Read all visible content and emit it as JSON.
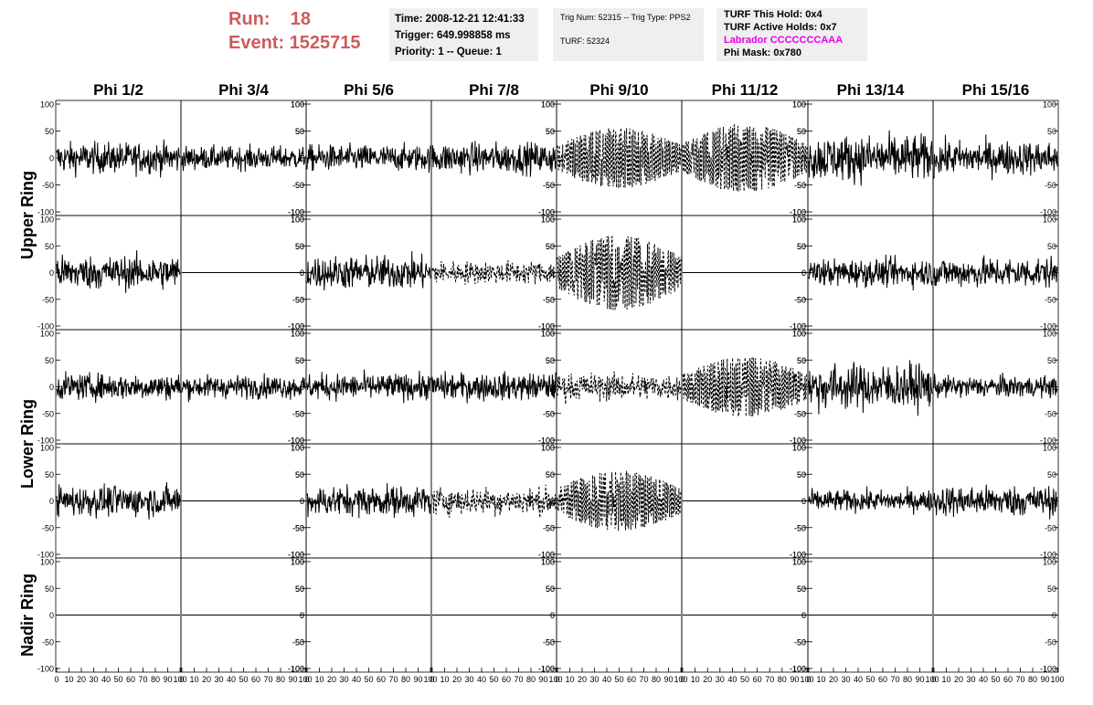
{
  "header": {
    "run_label": "Run:",
    "run_value": "18",
    "event_label": "Event:",
    "event_value": "1525715",
    "time": "Time: 2008-12-21 12:41:33",
    "trigger": "Trigger: 649.998858 ms",
    "priority": "Priority: 1 -- Queue: 1",
    "trig_num": "Trig Num: 52315 -- Trig Type: PPS2",
    "turf": "TURF: 52324",
    "turf_this_hold": "TURF This Hold: 0x4",
    "turf_active_holds": "TURF Active Holds: 0x7",
    "labrador": "Labrador CCCCCCCAAA",
    "phi_mask": "Phi Mask: 0x780"
  },
  "colors": {
    "run_text": "#cd5c5c",
    "labrador_text": "#e800e8",
    "info_bg": "#efefef",
    "trace": "#000000"
  },
  "chart_data": {
    "type": "line",
    "columns": [
      "Phi 1/2",
      "Phi 3/4",
      "Phi 5/6",
      "Phi 7/8",
      "Phi 9/10",
      "Phi 11/12",
      "Phi 13/14",
      "Phi 15/16"
    ],
    "ring_labels": [
      "Upper Ring",
      "Lower Ring",
      "Nadir Ring"
    ],
    "ring_rows": [
      [
        0,
        1
      ],
      [
        2,
        3
      ],
      [
        4
      ]
    ],
    "xlim": [
      0,
      100
    ],
    "ylim": [
      -100,
      100
    ],
    "x_ticks": [
      "0",
      "10",
      "20",
      "30",
      "40",
      "50",
      "60",
      "70",
      "80",
      "90",
      "100"
    ],
    "y_ticks": [
      "100",
      "50",
      "0",
      "-50",
      "-100"
    ],
    "row_tick_sides": [
      "left",
      "right",
      "left",
      "right",
      "left",
      "right",
      "left",
      "right"
    ],
    "grid": false,
    "panels": [
      [
        "noise",
        "noise",
        "noise",
        "noise",
        "dashed-signal",
        "dashed-signal",
        "noise",
        "noise"
      ],
      [
        "noise",
        "flat",
        "noise",
        "dashed-noise",
        "dashed-signal",
        "flat",
        "noise",
        "noise"
      ],
      [
        "noise",
        "noise",
        "noise",
        "noise",
        "dashed-noise",
        "dashed-signal",
        "noise",
        "noise"
      ],
      [
        "noise",
        "flat",
        "noise",
        "dashed-noise",
        "dashed-signal",
        "flat",
        "noise",
        "noise"
      ],
      [
        "flat",
        "flat",
        "flat",
        "flat",
        "flat",
        "flat",
        "flat",
        "flat"
      ]
    ],
    "amplitudes": [
      [
        20,
        15,
        17,
        20,
        40,
        45,
        30,
        22
      ],
      [
        22,
        0,
        22,
        15,
        50,
        0,
        18,
        20
      ],
      [
        17,
        15,
        17,
        18,
        18,
        40,
        30,
        14
      ],
      [
        20,
        0,
        20,
        18,
        40,
        0,
        14,
        20
      ],
      [
        0,
        0,
        0,
        0,
        0,
        0,
        0,
        0
      ]
    ]
  }
}
